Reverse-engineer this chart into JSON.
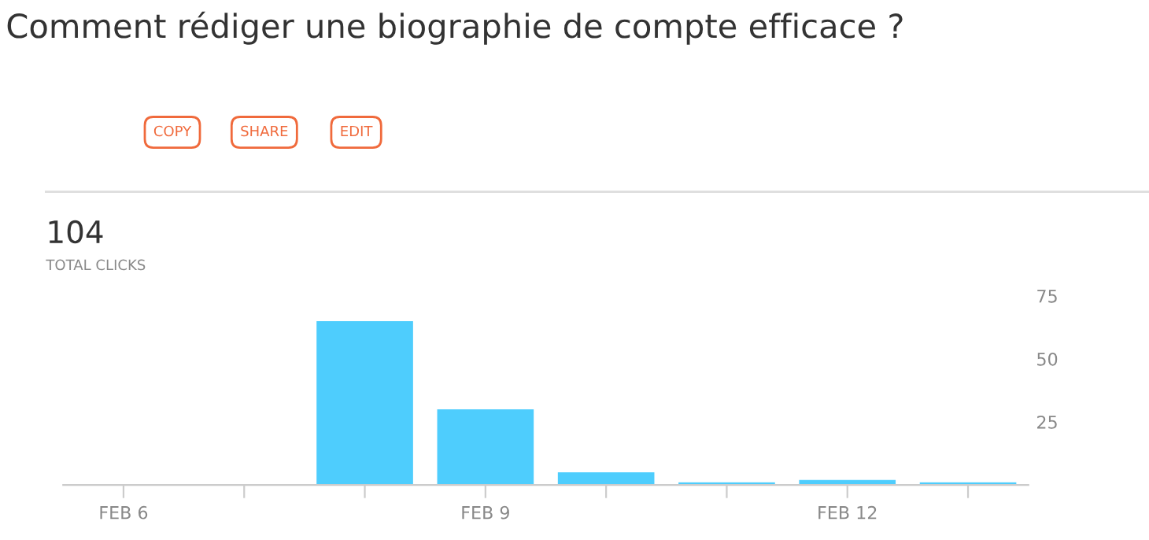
{
  "chart_data": {
    "type": "bar",
    "title": "Comment rédiger une biographie de compte efficace ?",
    "categories": [
      "FEB 6",
      null,
      null,
      "FEB 9",
      null,
      null,
      "FEB 12",
      null
    ],
    "values": [
      0,
      0,
      65,
      30,
      5,
      1,
      2,
      1
    ],
    "color": "#4ecdfd",
    "ylim": [
      0,
      75
    ],
    "yticks": [
      25,
      50,
      75
    ],
    "grid": false,
    "annotations": [
      "COPY",
      "SHARE",
      "EDIT",
      "104",
      "TOTAL CLICKS"
    ]
  }
}
